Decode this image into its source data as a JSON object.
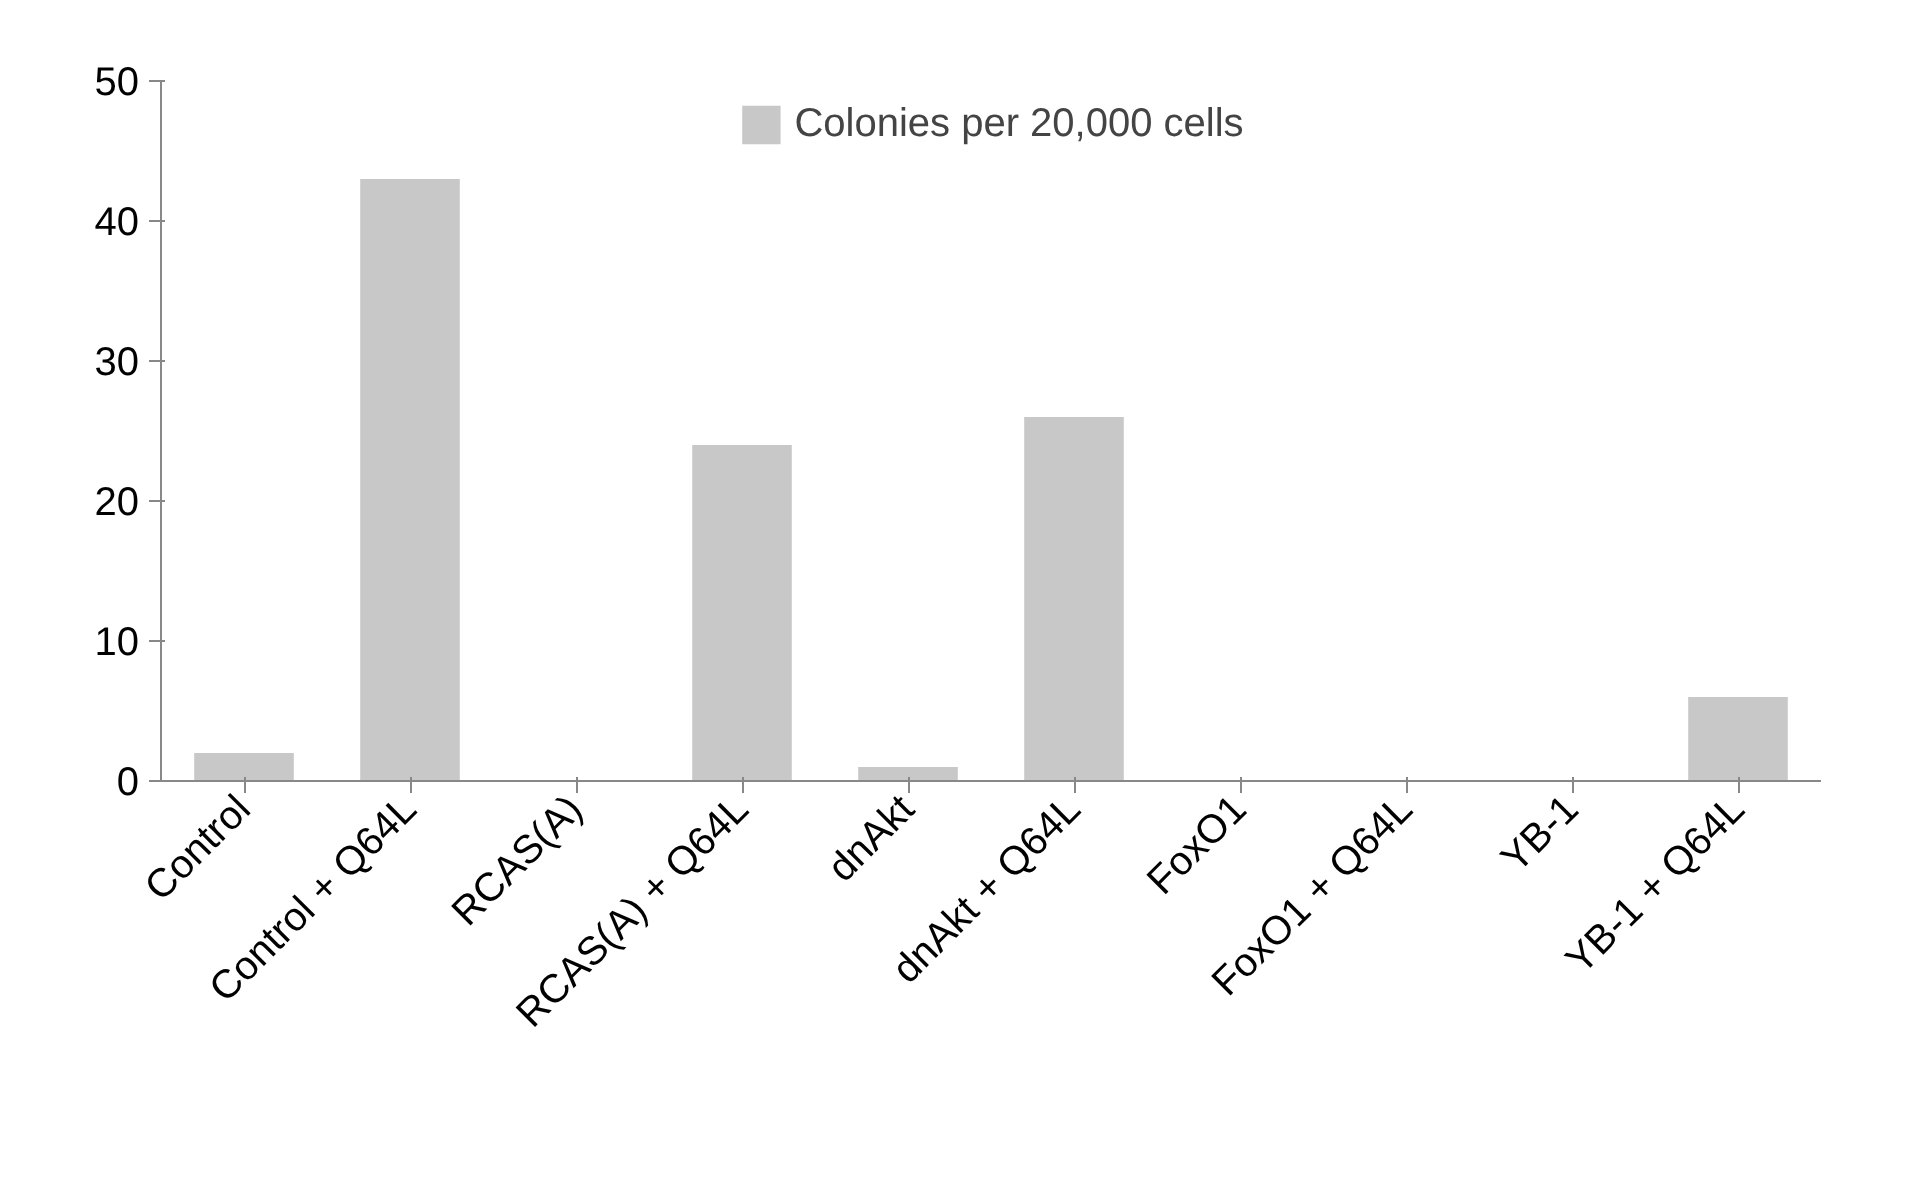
{
  "chart_data": {
    "type": "bar",
    "categories": [
      "Control",
      "Control + Q64L",
      "RCAS(A)",
      "RCAS(A) + Q64L",
      "dnAkt",
      "dnAkt + Q64L",
      "FoxO1",
      "FoxO1 + Q64L",
      "YB-1",
      "YB-1 + Q64L"
    ],
    "series": [
      {
        "name": "Colonies per 20,000 cells",
        "color": "#c8c8c8",
        "values": [
          2,
          43,
          0,
          24,
          1,
          26,
          0,
          0,
          0,
          6
        ]
      }
    ],
    "ylim": [
      0,
      50
    ],
    "yticks": [
      0,
      10,
      20,
      30,
      40,
      50
    ],
    "grid": false,
    "legend": "top"
  }
}
